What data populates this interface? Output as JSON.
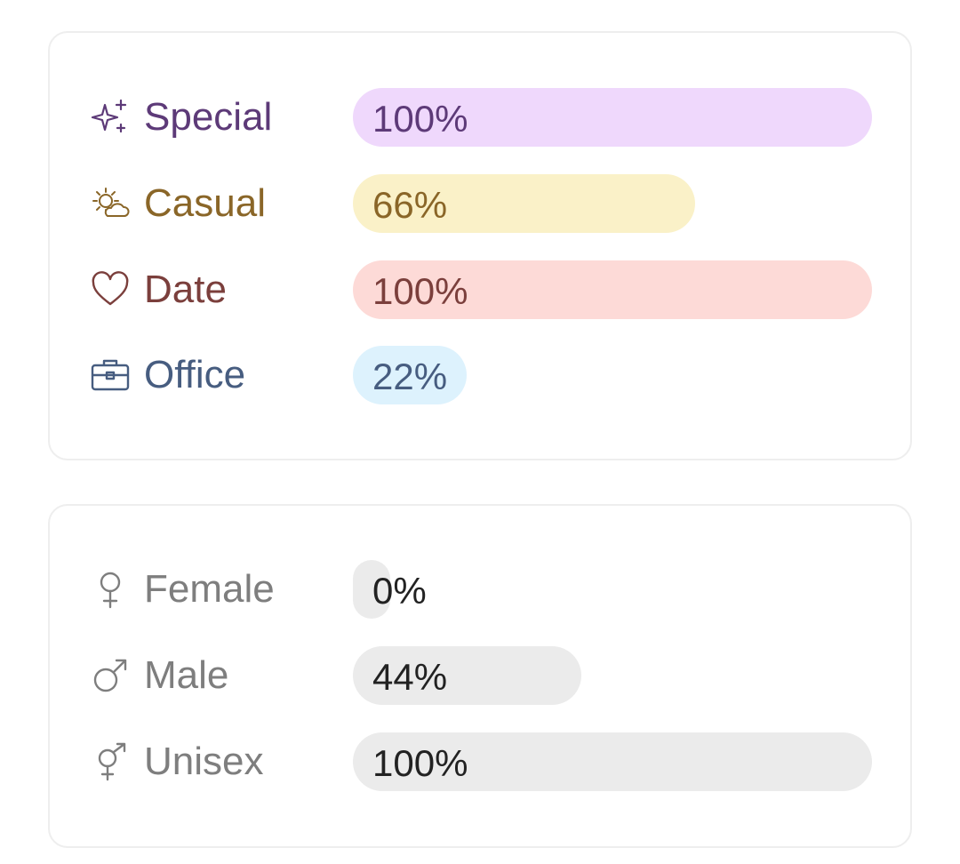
{
  "occasion": {
    "items": [
      {
        "label": "Special",
        "percent_text": "100%",
        "value": 1.0,
        "icon": "sparkles-icon",
        "text_color": "#5d3a78",
        "bar_color": "#efd8fc"
      },
      {
        "label": "Casual",
        "percent_text": "66%",
        "value": 0.66,
        "icon": "sun-cloud-icon",
        "text_color": "#8a6628",
        "bar_color": "#faf1c8"
      },
      {
        "label": "Date",
        "percent_text": "100%",
        "value": 1.0,
        "icon": "heart-icon",
        "text_color": "#7b3f3c",
        "bar_color": "#fddad7"
      },
      {
        "label": "Office",
        "percent_text": "22%",
        "value": 0.22,
        "icon": "briefcase-icon",
        "text_color": "#475d80",
        "bar_color": "#ddf2fd"
      }
    ]
  },
  "gender": {
    "label_color": "#7e7e7e",
    "value_color": "#222222",
    "bar_color": "#ebebeb",
    "items": [
      {
        "label": "Female",
        "percent_text": "0%",
        "value": 0.0,
        "icon": "female-symbol-icon"
      },
      {
        "label": "Male",
        "percent_text": "44%",
        "value": 0.44,
        "icon": "male-symbol-icon"
      },
      {
        "label": "Unisex",
        "percent_text": "100%",
        "value": 1.0,
        "icon": "unisex-symbol-icon"
      }
    ]
  }
}
